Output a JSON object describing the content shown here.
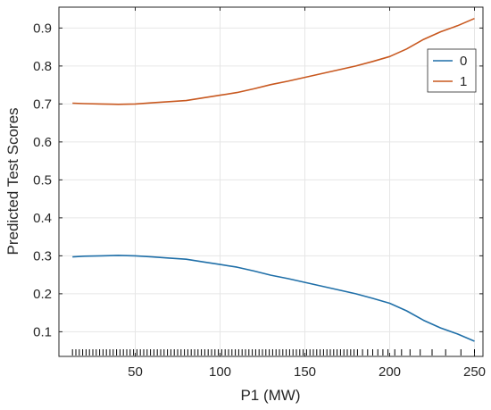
{
  "chart_data": {
    "type": "line",
    "title": "",
    "xlabel": "P1 (MW)",
    "ylabel": "Predicted Test Scores",
    "xlim": [
      5,
      255
    ],
    "ylim": [
      0.035,
      0.955
    ],
    "xticks": [
      50,
      100,
      150,
      200,
      250
    ],
    "yticks": [
      0.1,
      0.2,
      0.3,
      0.4,
      0.5,
      0.6,
      0.7,
      0.8,
      0.9
    ],
    "xtick_labels": [
      "50",
      "100",
      "150",
      "200",
      "250"
    ],
    "ytick_labels": [
      "0.1",
      "0.2",
      "0.3",
      "0.4",
      "0.5",
      "0.6",
      "0.7",
      "0.8",
      "0.9"
    ],
    "grid": true,
    "legend_position": "top-right",
    "colors": {
      "series0": "#1f6fa8",
      "series1": "#c8581f",
      "rug": "#000000",
      "grid": "#e6e6e6",
      "axis": "#262626"
    },
    "series": [
      {
        "name": "0",
        "x": [
          13,
          20,
          30,
          40,
          50,
          60,
          70,
          80,
          90,
          100,
          110,
          120,
          130,
          140,
          150,
          160,
          170,
          180,
          190,
          200,
          210,
          220,
          230,
          240,
          250
        ],
        "values": [
          0.297,
          0.299,
          0.3,
          0.301,
          0.3,
          0.297,
          0.294,
          0.291,
          0.284,
          0.277,
          0.27,
          0.26,
          0.249,
          0.24,
          0.23,
          0.22,
          0.21,
          0.2,
          0.188,
          0.175,
          0.155,
          0.13,
          0.11,
          0.094,
          0.075
        ]
      },
      {
        "name": "1",
        "x": [
          13,
          20,
          30,
          40,
          50,
          60,
          70,
          80,
          90,
          100,
          110,
          120,
          130,
          140,
          150,
          160,
          170,
          180,
          190,
          200,
          210,
          220,
          230,
          240,
          250
        ],
        "values": [
          0.702,
          0.701,
          0.7,
          0.699,
          0.7,
          0.703,
          0.706,
          0.709,
          0.716,
          0.723,
          0.73,
          0.74,
          0.751,
          0.76,
          0.77,
          0.78,
          0.79,
          0.8,
          0.812,
          0.825,
          0.845,
          0.87,
          0.89,
          0.906,
          0.925
        ]
      }
    ],
    "rug_x": [
      13,
      15,
      17,
      19,
      21,
      23,
      25,
      27,
      29,
      31,
      33,
      35,
      37,
      39,
      41,
      43,
      45,
      47,
      49,
      51,
      53,
      55,
      57,
      59,
      61,
      63,
      65,
      67,
      69,
      71,
      73,
      75,
      77,
      79,
      81,
      83,
      85,
      87,
      89,
      91,
      93,
      95,
      97,
      99,
      101,
      103,
      105,
      107,
      109,
      111,
      113,
      115,
      117,
      119,
      121,
      123,
      125,
      127,
      129,
      131,
      133,
      135,
      137,
      139,
      141,
      143,
      145,
      147,
      149,
      151,
      153,
      155,
      157,
      159,
      161,
      163,
      165,
      167,
      169,
      171,
      173,
      175,
      177,
      179,
      181,
      184,
      187,
      190,
      193,
      196,
      199,
      203,
      207,
      212,
      218,
      225,
      233,
      242,
      250
    ]
  }
}
